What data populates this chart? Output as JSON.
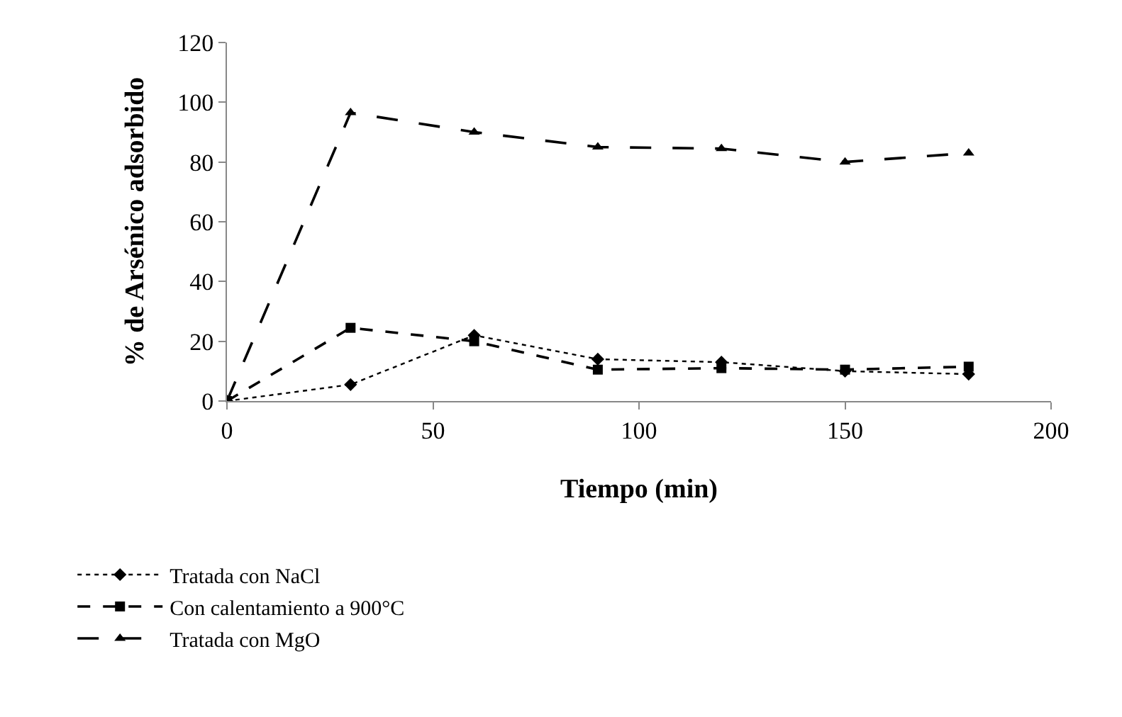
{
  "chart_data": {
    "type": "line",
    "xlabel": "Tiempo (min)",
    "ylabel": "% de Arsénico adsorbido",
    "x": [
      0,
      30,
      60,
      90,
      120,
      150,
      180
    ],
    "xlim": [
      0,
      200
    ],
    "xticks": [
      0,
      50,
      100,
      150,
      200
    ],
    "ylim": [
      0,
      120
    ],
    "yticks": [
      0,
      20,
      40,
      60,
      80,
      100,
      120
    ],
    "legend": "bottom left",
    "series": [
      {
        "name": "Tratada con NaCl",
        "color": "#000000",
        "values": [
          0,
          5.5,
          22,
          14,
          13,
          10,
          9
        ],
        "marker": "diamond",
        "line_style": "dotted"
      },
      {
        "name": "Con calentamiento a 900°C",
        "color": "#000000",
        "values": [
          0,
          24.5,
          20,
          10.5,
          11,
          10.5,
          11.5
        ],
        "marker": "square",
        "line_style": "dashed"
      },
      {
        "name": "Tratada con MgO",
        "color": "#000000",
        "values": [
          0,
          96.5,
          90,
          85,
          84.5,
          80,
          83
        ],
        "marker": "triangle",
        "line_style": "longdash"
      }
    ]
  }
}
